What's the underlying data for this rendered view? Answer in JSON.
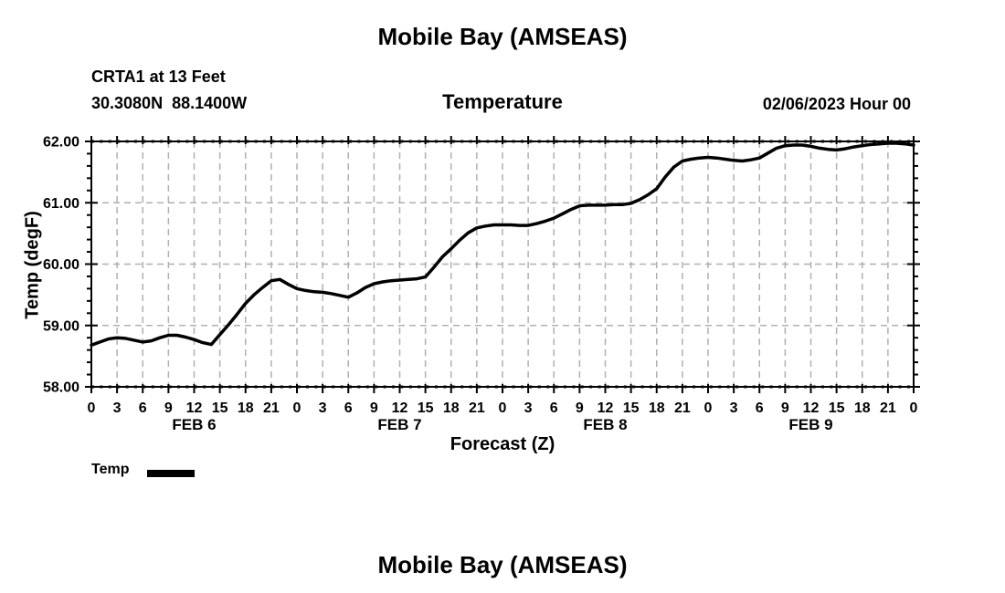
{
  "page": {
    "top_title": "Mobile Bay (AMSEAS)",
    "bottom_title": "Mobile Bay (AMSEAS)"
  },
  "header": {
    "station_name": "CRTA1 at 13 Feet",
    "station_coords": "30.3080N  88.1400W",
    "plot_title": "Temperature",
    "run_label": "02/06/2023 Hour 00"
  },
  "legend": {
    "label": "Temp",
    "swatch_color": "#000000"
  },
  "colors": {
    "line": "#000000",
    "grid": "#b0b0b0",
    "frame": "#000000",
    "text": "#000000",
    "background": "#ffffff"
  },
  "chart_data": {
    "type": "line",
    "title": "Temperature",
    "xlabel": "Forecast (Z)",
    "ylabel": "Temp (degF)",
    "ylim": [
      58.0,
      62.0
    ],
    "y_major_step": 1.0,
    "y_minor_step": 0.2,
    "y_tick_labels": [
      "58.00",
      "59.00",
      "60.00",
      "61.00",
      "62.00"
    ],
    "x_hours_total": 96,
    "x_major_step_hours": 3,
    "x_tick_labels": [
      "0",
      "3",
      "6",
      "9",
      "12",
      "15",
      "18",
      "21",
      "0",
      "3",
      "6",
      "9",
      "12",
      "15",
      "18",
      "21",
      "0",
      "3",
      "6",
      "9",
      "12",
      "15",
      "18",
      "21",
      "0",
      "3",
      "6",
      "9",
      "12",
      "15",
      "18",
      "21",
      "0"
    ],
    "x_date_labels": [
      {
        "label": "FEB 6",
        "hour": 12
      },
      {
        "label": "FEB 7",
        "hour": 36
      },
      {
        "label": "FEB 8",
        "hour": 60
      },
      {
        "label": "FEB 9",
        "hour": 84
      }
    ],
    "grid": true,
    "legend_position": "bottom-left",
    "series": [
      {
        "name": "Temp",
        "color": "#000000",
        "x_step_hours": 1,
        "values": [
          58.68,
          58.73,
          58.78,
          58.8,
          58.79,
          58.76,
          58.73,
          58.75,
          58.8,
          58.84,
          58.84,
          58.81,
          58.77,
          58.72,
          58.69,
          58.85,
          59.01,
          59.18,
          59.36,
          59.5,
          59.62,
          59.73,
          59.75,
          59.67,
          59.6,
          59.57,
          59.55,
          59.54,
          59.52,
          59.49,
          59.46,
          59.53,
          59.62,
          59.68,
          59.71,
          59.73,
          59.74,
          59.75,
          59.76,
          59.79,
          59.95,
          60.12,
          60.25,
          60.39,
          60.51,
          60.59,
          60.62,
          60.64,
          60.64,
          60.64,
          60.63,
          60.63,
          60.66,
          60.7,
          60.75,
          60.82,
          60.89,
          60.95,
          60.96,
          60.96,
          60.96,
          60.97,
          60.97,
          60.99,
          61.05,
          61.13,
          61.23,
          61.42,
          61.58,
          61.68,
          61.71,
          61.73,
          61.74,
          61.73,
          61.71,
          61.69,
          61.68,
          61.7,
          61.73,
          61.81,
          61.89,
          61.93,
          61.94,
          61.94,
          61.92,
          61.89,
          61.87,
          61.86,
          61.88,
          61.91,
          61.93,
          61.95,
          61.96,
          61.97,
          61.97,
          61.96,
          61.94
        ]
      }
    ]
  }
}
